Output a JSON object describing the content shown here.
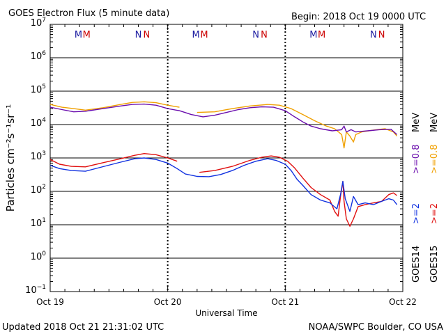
{
  "title": "GOES Electron Flux (5 minute data)",
  "begin": "Begin: 2018 Oct 19 0000 UTC",
  "updated": "Updated 2018 Oct 21 21:31:02 UTC",
  "credit": "NOAA/SWPC Boulder, CO USA",
  "colors": {
    "goes14_ge0p8": "#6a0dad",
    "goes15_ge0p8": "#f0a000",
    "goes14_ge2": "#1030e0",
    "goes15_ge2": "#e01010",
    "marker_m": "#cc0000",
    "marker_n": "#1a1aa0"
  },
  "legend": {
    "goes14": "GOES14",
    "goes15": "GOES15",
    "ge2_14": ">=2",
    "ge2_15": ">=2",
    "ge0p8_14": ">=0.8",
    "ge0p8_15": ">=0.8",
    "mev": "MeV"
  },
  "markers": [
    {
      "day": 0.24,
      "letter": "M",
      "color": "#1a1aa0"
    },
    {
      "day": 0.31,
      "letter": "M",
      "color": "#cc0000"
    },
    {
      "day": 0.75,
      "letter": "N",
      "color": "#1a1aa0"
    },
    {
      "day": 0.82,
      "letter": "N",
      "color": "#cc0000"
    },
    {
      "day": 1.24,
      "letter": "M",
      "color": "#1a1aa0"
    },
    {
      "day": 1.31,
      "letter": "M",
      "color": "#cc0000"
    },
    {
      "day": 1.75,
      "letter": "N",
      "color": "#1a1aa0"
    },
    {
      "day": 1.82,
      "letter": "N",
      "color": "#cc0000"
    },
    {
      "day": 2.24,
      "letter": "M",
      "color": "#1a1aa0"
    },
    {
      "day": 2.31,
      "letter": "M",
      "color": "#cc0000"
    },
    {
      "day": 2.75,
      "letter": "N",
      "color": "#1a1aa0"
    },
    {
      "day": 2.82,
      "letter": "N",
      "color": "#cc0000"
    }
  ],
  "chart_data": {
    "type": "line",
    "title": "GOES Electron Flux (5 minute data)",
    "xlabel": "Universal Time",
    "ylabel": "Particles cm⁻²s⁻¹sr⁻¹",
    "x_ticks": [
      "Oct 19",
      "Oct 20",
      "Oct 21",
      "Oct 22"
    ],
    "x_range_days": [
      0,
      3
    ],
    "yscale": "log",
    "ylim_exp": [
      -1,
      7
    ],
    "y_tick_exponents": [
      7,
      6,
      5,
      4,
      3,
      2,
      1,
      0,
      -1
    ],
    "threshold": 1000,
    "series": [
      {
        "name": "GOES15 >=0.8 MeV",
        "color": "#f0a000",
        "segments": [
          [
            [
              0.0,
              40000
            ],
            [
              0.1,
              33000
            ],
            [
              0.2,
              30000
            ],
            [
              0.3,
              27000
            ],
            [
              0.45,
              32000
            ],
            [
              0.6,
              40000
            ],
            [
              0.7,
              46000
            ],
            [
              0.8,
              48000
            ],
            [
              0.9,
              45000
            ],
            [
              1.0,
              38000
            ],
            [
              1.1,
              33000
            ]
          ],
          [
            [
              1.25,
              23000
            ],
            [
              1.4,
              24000
            ],
            [
              1.55,
              30000
            ],
            [
              1.7,
              36000
            ],
            [
              1.85,
              40000
            ],
            [
              1.95,
              38000
            ],
            [
              2.05,
              30000
            ],
            [
              2.15,
              20000
            ],
            [
              2.25,
              13000
            ],
            [
              2.35,
              9000
            ],
            [
              2.42,
              7500
            ],
            [
              2.48,
              5000
            ],
            [
              2.5,
              2000
            ],
            [
              2.52,
              6000
            ],
            [
              2.55,
              4500
            ],
            [
              2.58,
              3000
            ],
            [
              2.6,
              5000
            ],
            [
              2.65,
              6000
            ],
            [
              2.75,
              6800
            ],
            [
              2.85,
              7500
            ],
            [
              2.92,
              6000
            ],
            [
              2.95,
              4500
            ]
          ]
        ]
      },
      {
        "name": "GOES14 >=0.8 MeV",
        "color": "#6a0dad",
        "segments": [
          [
            [
              0.0,
              33000
            ],
            [
              0.1,
              28000
            ],
            [
              0.2,
              24000
            ],
            [
              0.3,
              25000
            ],
            [
              0.45,
              30000
            ],
            [
              0.6,
              36000
            ],
            [
              0.7,
              40000
            ],
            [
              0.8,
              41000
            ],
            [
              0.9,
              38000
            ],
            [
              1.0,
              30000
            ],
            [
              1.1,
              26000
            ],
            [
              1.2,
              20000
            ],
            [
              1.3,
              17000
            ],
            [
              1.4,
              19000
            ],
            [
              1.5,
              23000
            ],
            [
              1.6,
              28000
            ],
            [
              1.7,
              32000
            ],
            [
              1.8,
              34000
            ],
            [
              1.9,
              33000
            ],
            [
              2.0,
              26000
            ],
            [
              2.08,
              17000
            ],
            [
              2.15,
              12000
            ],
            [
              2.22,
              9000
            ],
            [
              2.3,
              7500
            ],
            [
              2.4,
              6500
            ],
            [
              2.48,
              7000
            ],
            [
              2.5,
              9000
            ],
            [
              2.52,
              6000
            ],
            [
              2.56,
              7000
            ],
            [
              2.6,
              6000
            ],
            [
              2.7,
              6500
            ],
            [
              2.8,
              7000
            ],
            [
              2.9,
              7200
            ],
            [
              2.95,
              5000
            ]
          ]
        ]
      },
      {
        "name": "GOES15 >=2 MeV",
        "color": "#e01010",
        "segments": [
          [
            [
              0.0,
              900
            ],
            [
              0.08,
              650
            ],
            [
              0.18,
              560
            ],
            [
              0.3,
              540
            ],
            [
              0.45,
              720
            ],
            [
              0.6,
              950
            ],
            [
              0.72,
              1200
            ],
            [
              0.8,
              1350
            ],
            [
              0.9,
              1250
            ],
            [
              1.0,
              1000
            ],
            [
              1.08,
              800
            ]
          ],
          [
            [
              1.27,
              370
            ],
            [
              1.4,
              420
            ],
            [
              1.55,
              560
            ],
            [
              1.7,
              850
            ],
            [
              1.8,
              1050
            ],
            [
              1.88,
              1150
            ],
            [
              1.95,
              1050
            ],
            [
              2.02,
              800
            ],
            [
              2.08,
              500
            ],
            [
              2.15,
              250
            ],
            [
              2.22,
              130
            ],
            [
              2.3,
              80
            ],
            [
              2.38,
              55
            ],
            [
              2.42,
              25
            ],
            [
              2.45,
              18
            ],
            [
              2.47,
              70
            ],
            [
              2.49,
              200
            ],
            [
              2.5,
              50
            ],
            [
              2.52,
              15
            ],
            [
              2.55,
              9
            ],
            [
              2.58,
              15
            ],
            [
              2.62,
              35
            ],
            [
              2.68,
              40
            ],
            [
              2.75,
              45
            ],
            [
              2.82,
              50
            ],
            [
              2.88,
              80
            ],
            [
              2.92,
              90
            ],
            [
              2.95,
              75
            ]
          ]
        ]
      },
      {
        "name": "GOES14 >=2 MeV",
        "color": "#1030e0",
        "segments": [
          [
            [
              0.0,
              600
            ],
            [
              0.08,
              480
            ],
            [
              0.18,
              420
            ],
            [
              0.3,
              400
            ],
            [
              0.45,
              550
            ],
            [
              0.6,
              750
            ],
            [
              0.72,
              950
            ],
            [
              0.8,
              1000
            ],
            [
              0.9,
              900
            ],
            [
              1.0,
              700
            ],
            [
              1.08,
              480
            ],
            [
              1.15,
              330
            ],
            [
              1.25,
              280
            ],
            [
              1.35,
              275
            ],
            [
              1.45,
              320
            ],
            [
              1.55,
              420
            ],
            [
              1.65,
              600
            ],
            [
              1.75,
              800
            ],
            [
              1.85,
              950
            ],
            [
              1.92,
              850
            ],
            [
              2.0,
              650
            ],
            [
              2.05,
              420
            ],
            [
              2.1,
              230
            ],
            [
              2.15,
              150
            ],
            [
              2.22,
              80
            ],
            [
              2.3,
              55
            ],
            [
              2.38,
              45
            ],
            [
              2.44,
              30
            ],
            [
              2.47,
              80
            ],
            [
              2.49,
              200
            ],
            [
              2.51,
              60
            ],
            [
              2.55,
              25
            ],
            [
              2.58,
              70
            ],
            [
              2.62,
              40
            ],
            [
              2.68,
              45
            ],
            [
              2.75,
              40
            ],
            [
              2.82,
              50
            ],
            [
              2.88,
              60
            ],
            [
              2.92,
              55
            ],
            [
              2.95,
              40
            ]
          ]
        ]
      }
    ]
  }
}
